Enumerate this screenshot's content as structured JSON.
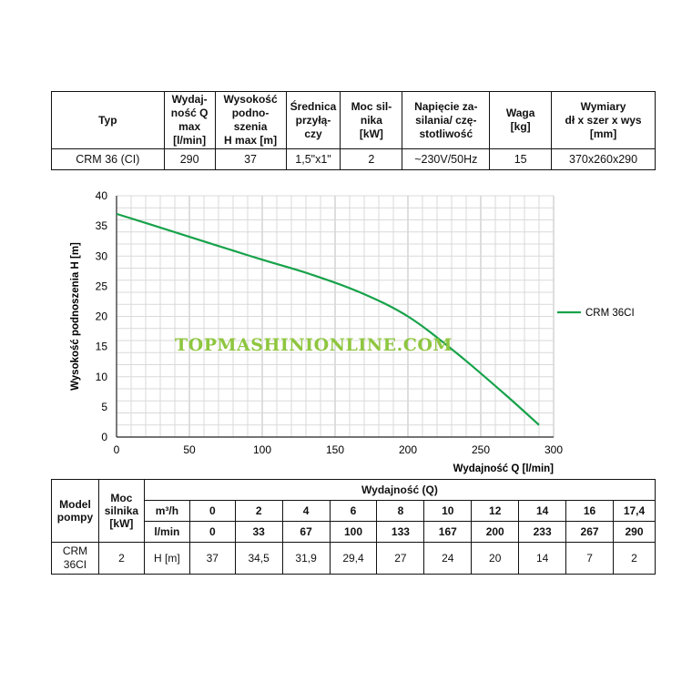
{
  "spec_table": {
    "headers": [
      "Typ",
      "Wydaj-\nność Q\nmax\n[l/min]",
      "Wysokość\npodno-\nszenia\nH max [m]",
      "Średnica\nprzyłą-\nczy",
      "Moc sil-\nnika\n[kW]",
      "Napięcie za-\nsilania/ czę-\nstotliwość",
      "Waga\n[kg]",
      "Wymiary\ndł x szer x wys\n[mm]"
    ],
    "row": [
      "CRM 36 (CI)",
      "290",
      "37",
      "1,5\"x1\"",
      "2",
      "~230V/50Hz",
      "15",
      "370x260x290"
    ]
  },
  "chart_data": {
    "type": "line",
    "xlabel": "Wydajność Q [l/min]",
    "ylabel": "Wysokość podnoszenia H [m]",
    "xlim": [
      0,
      300
    ],
    "ylim": [
      0,
      40
    ],
    "x_ticks": [
      "0",
      "50",
      "100",
      "150",
      "200",
      "250",
      "300"
    ],
    "y_ticks": [
      "0",
      "5",
      "10",
      "15",
      "20",
      "25",
      "30",
      "35",
      "40"
    ],
    "grid": true,
    "legend_position": "right",
    "series": [
      {
        "name": "CRM 36CI",
        "color": "#17a24a",
        "x": [
          0,
          33,
          67,
          100,
          133,
          167,
          200,
          233,
          267,
          290
        ],
        "y": [
          37,
          34.5,
          31.9,
          29.4,
          27,
          24,
          20,
          14,
          7,
          2
        ]
      }
    ]
  },
  "watermark": "TOPMASHINIONLINE.COM",
  "perf_table": {
    "model_header": "Model\npompy",
    "power_header": "Moc\nsilnika\n[kW]",
    "flow_header": "Wydajność (Q)",
    "m3h_label": "m³/h",
    "lmin_label": "l/min",
    "h_label": "H [m]",
    "m3h": [
      "0",
      "2",
      "4",
      "6",
      "8",
      "10",
      "12",
      "14",
      "16",
      "17,4"
    ],
    "lmin": [
      "0",
      "33",
      "67",
      "100",
      "133",
      "167",
      "200",
      "233",
      "267",
      "290"
    ],
    "h": [
      "37",
      "34,5",
      "31,9",
      "29,4",
      "27",
      "24",
      "20",
      "14",
      "7",
      "2"
    ],
    "model": "CRM\n36CI",
    "power": "2"
  }
}
